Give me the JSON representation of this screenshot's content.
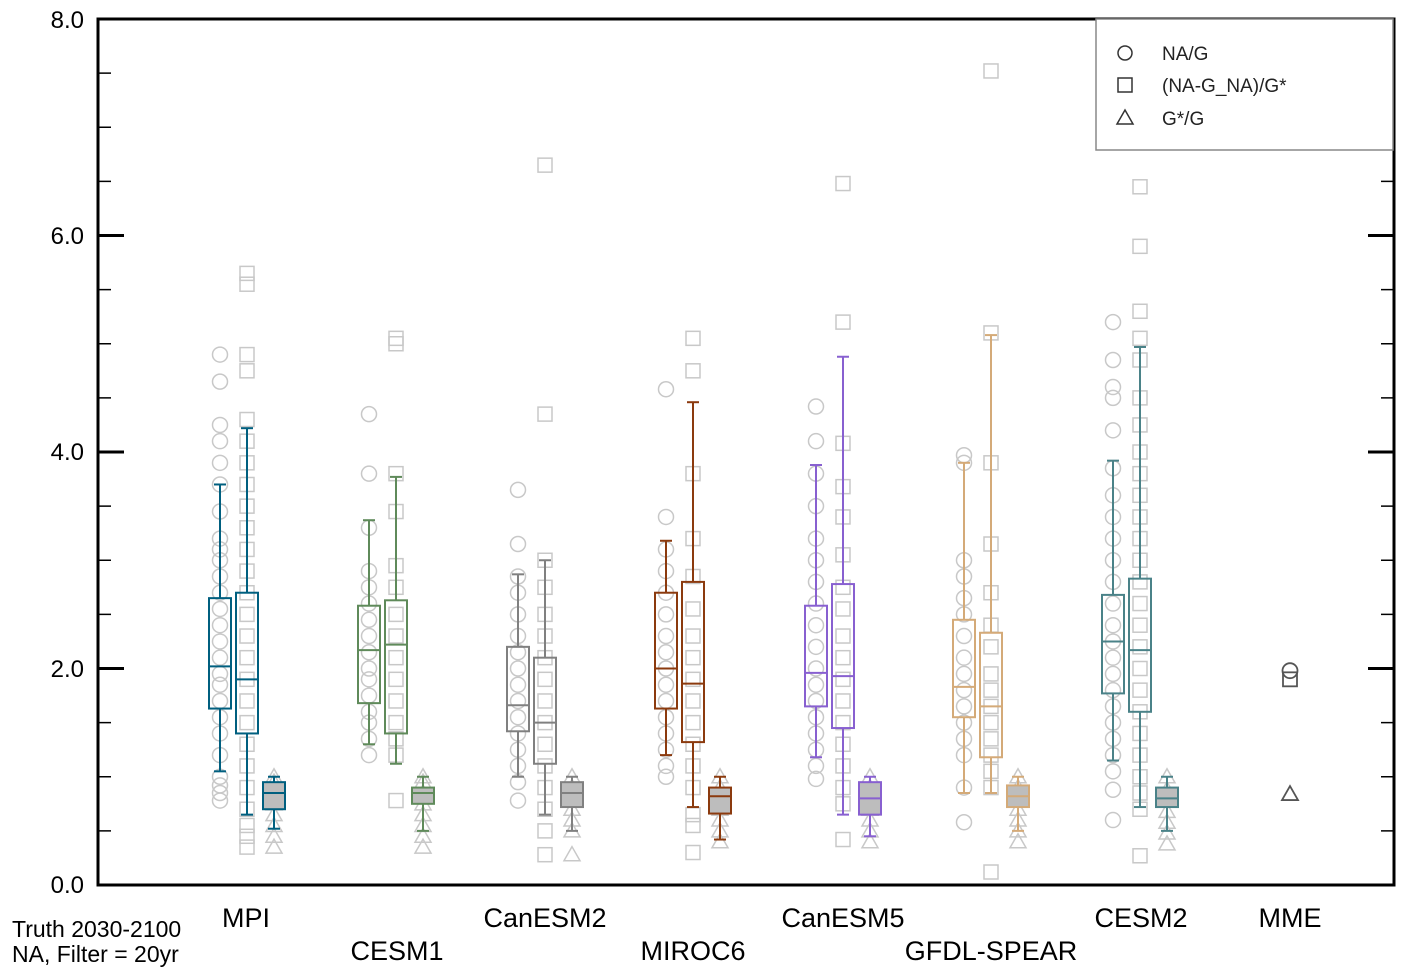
{
  "chart_data": {
    "type": "box",
    "ylim": [
      0,
      8
    ],
    "yticks": [
      "0.0",
      "2.0",
      "4.0",
      "6.0",
      "8.0"
    ],
    "annotation": [
      "Truth 2030-2100",
      "NA, Filter = 20yr"
    ],
    "legend": {
      "placement": "top-right",
      "entries": [
        {
          "marker": "circle",
          "label": "NA/G"
        },
        {
          "marker": "square",
          "label": "(NA-G_NA)/G*"
        },
        {
          "marker": "triangle",
          "label": "G*/G"
        }
      ]
    },
    "grid": false,
    "models": [
      {
        "name": "MPI",
        "color": "#005f7f",
        "label_row": 0,
        "boxes": [
          {
            "metric": "NA/G",
            "min": 1.05,
            "q1": 1.63,
            "median": 2.02,
            "q3": 2.65,
            "max": 3.7
          },
          {
            "metric": "(NA-G_NA)/G*",
            "min": 0.65,
            "q1": 1.4,
            "median": 1.9,
            "q3": 2.7,
            "max": 4.22
          },
          {
            "metric": "G*/G",
            "min": 0.52,
            "q1": 0.7,
            "median": 0.85,
            "q3": 0.95,
            "max": 1.0
          }
        ],
        "points": {
          "NA/G": [
            0.78,
            0.85,
            0.92,
            1.0,
            1.2,
            1.4,
            1.55,
            1.7,
            1.85,
            1.95,
            2.1,
            2.25,
            2.4,
            2.55,
            2.7,
            2.85,
            3.0,
            3.1,
            3.2,
            3.45,
            3.7,
            3.9,
            4.1,
            4.25,
            4.65,
            4.9
          ],
          "(NA-G_NA)/G*": [
            0.35,
            0.45,
            0.55,
            0.7,
            0.9,
            1.1,
            1.3,
            1.5,
            1.7,
            1.9,
            2.1,
            2.3,
            2.5,
            2.7,
            2.9,
            3.1,
            3.3,
            3.5,
            3.7,
            3.9,
            4.1,
            4.3,
            4.75,
            4.9,
            5.55,
            5.65
          ],
          "G*/G": [
            0.35,
            0.45,
            0.55,
            0.65,
            0.75,
            0.85,
            0.95,
            1.0
          ]
        }
      },
      {
        "name": "CESM1",
        "color": "#5f8a5a",
        "label_row": 1,
        "boxes": [
          {
            "metric": "NA/G",
            "min": 1.3,
            "q1": 1.68,
            "median": 2.17,
            "q3": 2.58,
            "max": 3.37
          },
          {
            "metric": "(NA-G_NA)/G*",
            "min": 1.12,
            "q1": 1.4,
            "median": 2.22,
            "q3": 2.63,
            "max": 3.77
          },
          {
            "metric": "G*/G",
            "min": 0.5,
            "q1": 0.75,
            "median": 0.85,
            "q3": 0.9,
            "max": 1.0
          }
        ],
        "points": {
          "NA/G": [
            1.2,
            1.35,
            1.5,
            1.6,
            1.75,
            1.9,
            2.0,
            2.15,
            2.3,
            2.45,
            2.6,
            2.75,
            2.9,
            3.3,
            3.8,
            4.35
          ],
          "(NA-G_NA)/G*": [
            0.78,
            1.2,
            1.35,
            1.5,
            1.7,
            1.9,
            2.1,
            2.3,
            2.5,
            2.75,
            2.95,
            3.45,
            3.8,
            5.0,
            5.05
          ],
          "G*/G": [
            0.35,
            0.45,
            0.55,
            0.65,
            0.75,
            0.85,
            0.95,
            1.0
          ]
        }
      },
      {
        "name": "CanESM2",
        "color": "#808080",
        "label_row": 0,
        "boxes": [
          {
            "metric": "NA/G",
            "min": 1.0,
            "q1": 1.42,
            "median": 1.66,
            "q3": 2.2,
            "max": 2.87
          },
          {
            "metric": "(NA-G_NA)/G*",
            "min": 0.65,
            "q1": 1.12,
            "median": 1.5,
            "q3": 2.1,
            "max": 3.0
          },
          {
            "metric": "G*/G",
            "min": 0.5,
            "q1": 0.72,
            "median": 0.85,
            "q3": 0.95,
            "max": 1.0
          }
        ],
        "points": {
          "NA/G": [
            0.78,
            0.95,
            1.1,
            1.25,
            1.4,
            1.55,
            1.7,
            1.85,
            2.0,
            2.15,
            2.3,
            2.5,
            2.7,
            2.85,
            3.15,
            3.65
          ],
          "(NA-G_NA)/G*": [
            0.28,
            0.5,
            0.7,
            0.9,
            1.1,
            1.3,
            1.5,
            1.7,
            1.9,
            2.1,
            2.3,
            2.5,
            2.75,
            3.0,
            4.35,
            6.65
          ],
          "G*/G": [
            0.28,
            0.5,
            0.6,
            0.7,
            0.8,
            0.9,
            1.0
          ]
        }
      },
      {
        "name": "MIROC6",
        "color": "#8b3a0e",
        "label_row": 1,
        "boxes": [
          {
            "metric": "NA/G",
            "min": 1.2,
            "q1": 1.63,
            "median": 2.0,
            "q3": 2.7,
            "max": 3.18
          },
          {
            "metric": "(NA-G_NA)/G*",
            "min": 0.72,
            "q1": 1.32,
            "median": 1.86,
            "q3": 2.8,
            "max": 4.46
          },
          {
            "metric": "G*/G",
            "min": 0.42,
            "q1": 0.66,
            "median": 0.82,
            "q3": 0.9,
            "max": 1.0
          }
        ],
        "points": {
          "NA/G": [
            1.0,
            1.1,
            1.25,
            1.4,
            1.55,
            1.7,
            1.85,
            2.0,
            2.15,
            2.3,
            2.5,
            2.7,
            2.9,
            3.1,
            3.4,
            4.58
          ],
          "(NA-G_NA)/G*": [
            0.3,
            0.55,
            0.65,
            0.9,
            1.1,
            1.3,
            1.5,
            1.7,
            1.9,
            2.1,
            2.3,
            2.55,
            2.85,
            3.2,
            3.8,
            4.75,
            5.05
          ],
          "G*/G": [
            0.4,
            0.5,
            0.6,
            0.7,
            0.8,
            0.9,
            1.0
          ]
        }
      },
      {
        "name": "CanESM5",
        "color": "#8860d0",
        "label_row": 0,
        "boxes": [
          {
            "metric": "NA/G",
            "min": 1.18,
            "q1": 1.65,
            "median": 1.96,
            "q3": 2.58,
            "max": 3.88
          },
          {
            "metric": "(NA-G_NA)/G*",
            "min": 0.65,
            "q1": 1.45,
            "median": 1.93,
            "q3": 2.78,
            "max": 4.88
          },
          {
            "metric": "G*/G",
            "min": 0.45,
            "q1": 0.65,
            "median": 0.8,
            "q3": 0.95,
            "max": 1.0
          }
        ],
        "points": {
          "NA/G": [
            0.98,
            1.1,
            1.25,
            1.4,
            1.55,
            1.7,
            1.85,
            2.0,
            2.2,
            2.4,
            2.6,
            2.8,
            3.0,
            3.2,
            3.5,
            3.8,
            4.1,
            4.42
          ],
          "(NA-G_NA)/G*": [
            0.42,
            0.75,
            0.9,
            1.1,
            1.3,
            1.5,
            1.7,
            1.9,
            2.1,
            2.3,
            2.55,
            2.75,
            3.05,
            3.4,
            3.68,
            4.08,
            5.2,
            6.48
          ],
          "G*/G": [
            0.4,
            0.5,
            0.6,
            0.7,
            0.8,
            0.9,
            1.0
          ]
        }
      },
      {
        "name": "GFDL-SPEAR",
        "color": "#d4aa78",
        "label_row": 1,
        "boxes": [
          {
            "metric": "NA/G",
            "min": 0.85,
            "q1": 1.55,
            "median": 1.83,
            "q3": 2.45,
            "max": 3.9
          },
          {
            "metric": "(NA-G_NA)/G*",
            "min": 0.85,
            "q1": 1.18,
            "median": 1.65,
            "q3": 2.33,
            "max": 5.08
          },
          {
            "metric": "G*/G",
            "min": 0.5,
            "q1": 0.72,
            "median": 0.82,
            "q3": 0.92,
            "max": 1.0
          }
        ],
        "points": {
          "NA/G": [
            0.58,
            0.9,
            1.2,
            1.35,
            1.5,
            1.65,
            1.8,
            1.95,
            2.1,
            2.3,
            2.5,
            2.65,
            2.85,
            3.0,
            3.9,
            3.97
          ],
          "(NA-G_NA)/G*": [
            0.12,
            0.9,
            1.05,
            1.2,
            1.35,
            1.5,
            1.65,
            1.8,
            1.95,
            2.2,
            2.4,
            2.7,
            3.15,
            3.9,
            5.1,
            7.52
          ],
          "G*/G": [
            0.4,
            0.5,
            0.6,
            0.7,
            0.8,
            0.9,
            1.0
          ]
        }
      },
      {
        "name": "CESM2",
        "color": "#4a8288",
        "label_row": 0,
        "boxes": [
          {
            "metric": "NA/G",
            "min": 1.15,
            "q1": 1.77,
            "median": 2.25,
            "q3": 2.68,
            "max": 3.92
          },
          {
            "metric": "(NA-G_NA)/G*",
            "min": 0.72,
            "q1": 1.6,
            "median": 2.17,
            "q3": 2.83,
            "max": 4.97
          },
          {
            "metric": "G*/G",
            "min": 0.5,
            "q1": 0.72,
            "median": 0.8,
            "q3": 0.9,
            "max": 1.0
          }
        ],
        "points": {
          "NA/G": [
            0.6,
            0.88,
            1.05,
            1.2,
            1.35,
            1.5,
            1.65,
            1.8,
            1.95,
            2.1,
            2.25,
            2.4,
            2.6,
            2.8,
            3.0,
            3.2,
            3.4,
            3.6,
            3.85,
            4.2,
            4.5,
            4.6,
            4.85,
            5.2
          ],
          "(NA-G_NA)/G*": [
            0.27,
            0.7,
            0.85,
            1.0,
            1.2,
            1.4,
            1.6,
            1.8,
            2.0,
            2.2,
            2.4,
            2.6,
            2.8,
            3.0,
            3.2,
            3.4,
            3.6,
            3.8,
            4.0,
            4.25,
            4.5,
            4.85,
            5.05,
            5.3,
            5.9,
            6.45
          ],
          "G*/G": [
            0.38,
            0.48,
            0.58,
            0.68,
            0.78,
            0.88,
            1.0
          ]
        }
      },
      {
        "name": "MME",
        "color": "#555555",
        "label_row": 0,
        "boxes": [],
        "points": {
          "NA/G": [
            1.98
          ],
          "(NA-G_NA)/G*": [
            1.9
          ],
          "G*/G": [
            0.84
          ]
        }
      }
    ]
  }
}
